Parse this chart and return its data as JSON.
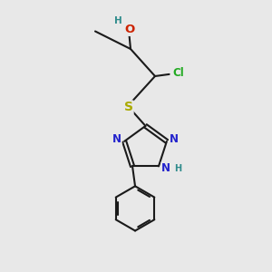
{
  "background_color": "#e8e8e8",
  "bond_color": "#1a1a1a",
  "bond_width": 1.5,
  "atom_colors": {
    "C": "#1a1a1a",
    "H": "#2e8b8b",
    "O": "#cc2200",
    "N": "#2222cc",
    "S": "#aaaa00",
    "Cl": "#22aa22"
  },
  "font_size": 8.5,
  "fig_size": [
    3.0,
    3.0
  ],
  "dpi": 100
}
